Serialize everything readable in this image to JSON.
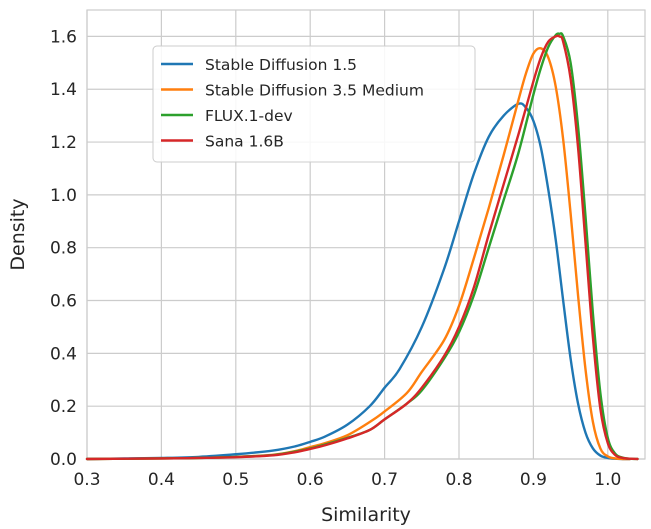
{
  "chart_data": {
    "type": "line",
    "title": "",
    "xlabel": "Similarity",
    "ylabel": "Density",
    "xlim": [
      0.3,
      1.05
    ],
    "ylim": [
      0,
      1.7
    ],
    "xticks": [
      0.3,
      0.4,
      0.5,
      0.6,
      0.7,
      0.8,
      0.9,
      1.0
    ],
    "xtick_labels": [
      "0.3",
      "0.4",
      "0.5",
      "0.6",
      "0.7",
      "0.8",
      "0.9",
      "1.0"
    ],
    "yticks": [
      0,
      0.2,
      0.4,
      0.6,
      0.8,
      1.0,
      1.2,
      1.4,
      1.6
    ],
    "ytick_labels": [
      "0.0",
      "0.2",
      "0.4",
      "0.6",
      "0.8",
      "1.0",
      "1.2",
      "1.4",
      "1.6"
    ],
    "grid": true,
    "legend_position": "upper-left",
    "series": [
      {
        "name": "Stable Diffusion 1.5",
        "color": "#1f77b4",
        "x": [
          0.3,
          0.35,
          0.4,
          0.45,
          0.5,
          0.55,
          0.58,
          0.6,
          0.62,
          0.65,
          0.68,
          0.7,
          0.72,
          0.75,
          0.78,
          0.8,
          0.82,
          0.84,
          0.86,
          0.88,
          0.89,
          0.9,
          0.91,
          0.92,
          0.93,
          0.94,
          0.95,
          0.96,
          0.97,
          0.98,
          0.99,
          1.0,
          1.01,
          1.02,
          1.03
        ],
        "y": [
          0.0,
          0.002,
          0.004,
          0.008,
          0.018,
          0.032,
          0.048,
          0.065,
          0.085,
          0.13,
          0.2,
          0.27,
          0.34,
          0.5,
          0.72,
          0.9,
          1.08,
          1.22,
          1.3,
          1.345,
          1.33,
          1.28,
          1.18,
          1.02,
          0.83,
          0.6,
          0.38,
          0.21,
          0.1,
          0.04,
          0.013,
          0.004,
          0.001,
          0.0,
          0.0
        ]
      },
      {
        "name": "Stable Diffusion 3.5 Medium",
        "color": "#ff7f0e",
        "x": [
          0.3,
          0.4,
          0.45,
          0.5,
          0.55,
          0.58,
          0.6,
          0.62,
          0.65,
          0.68,
          0.7,
          0.73,
          0.75,
          0.78,
          0.8,
          0.82,
          0.84,
          0.86,
          0.88,
          0.89,
          0.9,
          0.91,
          0.92,
          0.93,
          0.94,
          0.95,
          0.96,
          0.97,
          0.98,
          0.99,
          1.0,
          1.01,
          1.02,
          1.03
        ],
        "y": [
          0.0,
          0.002,
          0.004,
          0.008,
          0.016,
          0.03,
          0.045,
          0.06,
          0.09,
          0.14,
          0.18,
          0.25,
          0.33,
          0.45,
          0.58,
          0.76,
          0.95,
          1.15,
          1.36,
          1.46,
          1.535,
          1.555,
          1.52,
          1.41,
          1.21,
          0.93,
          0.62,
          0.34,
          0.14,
          0.04,
          0.01,
          0.002,
          0.0,
          0.0
        ]
      },
      {
        "name": "FLUX.1-dev",
        "color": "#2ca02c",
        "x": [
          0.3,
          0.4,
          0.45,
          0.5,
          0.55,
          0.58,
          0.6,
          0.62,
          0.65,
          0.68,
          0.7,
          0.73,
          0.75,
          0.78,
          0.8,
          0.82,
          0.84,
          0.86,
          0.88,
          0.9,
          0.91,
          0.92,
          0.93,
          0.935,
          0.94,
          0.95,
          0.96,
          0.97,
          0.98,
          0.99,
          1.0,
          1.01,
          1.02,
          1.03,
          1.04
        ],
        "y": [
          0.0,
          0.002,
          0.004,
          0.008,
          0.015,
          0.028,
          0.04,
          0.055,
          0.08,
          0.11,
          0.15,
          0.21,
          0.26,
          0.38,
          0.48,
          0.62,
          0.8,
          0.98,
          1.16,
          1.38,
          1.48,
          1.56,
          1.605,
          1.61,
          1.6,
          1.5,
          1.26,
          0.92,
          0.55,
          0.25,
          0.08,
          0.02,
          0.005,
          0.001,
          0.0
        ]
      },
      {
        "name": "Sana 1.6B",
        "color": "#d62728",
        "x": [
          0.3,
          0.4,
          0.45,
          0.5,
          0.55,
          0.58,
          0.6,
          0.62,
          0.65,
          0.68,
          0.7,
          0.73,
          0.75,
          0.78,
          0.8,
          0.82,
          0.84,
          0.86,
          0.88,
          0.9,
          0.91,
          0.92,
          0.93,
          0.935,
          0.94,
          0.95,
          0.96,
          0.97,
          0.98,
          0.99,
          1.0,
          1.01,
          1.02,
          1.03,
          1.04
        ],
        "y": [
          0.0,
          0.002,
          0.004,
          0.007,
          0.014,
          0.026,
          0.038,
          0.052,
          0.078,
          0.11,
          0.15,
          0.21,
          0.27,
          0.39,
          0.5,
          0.65,
          0.85,
          1.04,
          1.23,
          1.43,
          1.52,
          1.58,
          1.6,
          1.6,
          1.58,
          1.44,
          1.18,
          0.82,
          0.46,
          0.19,
          0.06,
          0.015,
          0.004,
          0.001,
          0.0
        ]
      }
    ]
  }
}
